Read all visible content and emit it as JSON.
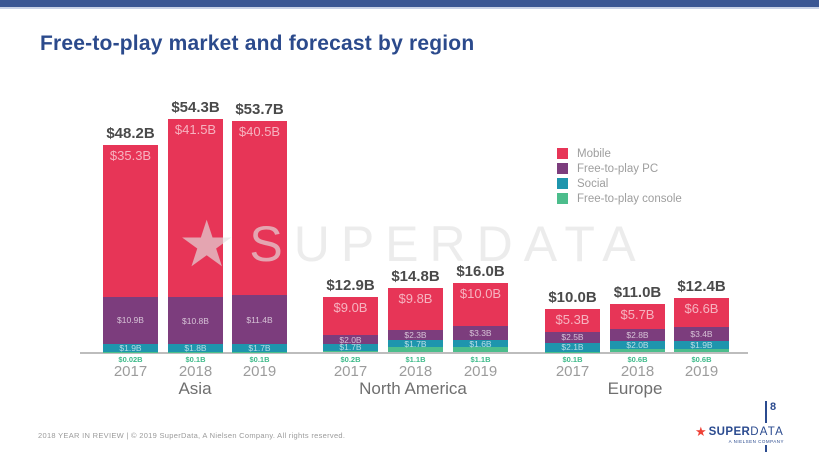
{
  "slide": {
    "title": "Free-to-play market and forecast by region",
    "footer": "2018 YEAR IN REVIEW  |  © 2019 SuperData, A Nielsen Company. All rights reserved.",
    "page_number": "8",
    "watermark": "SUPERDATA",
    "logo": {
      "super": "SUPER",
      "data": "DATA",
      "subtitle": "A NIELSEN COMPANY"
    }
  },
  "colors": {
    "mobile": "#e73557",
    "pc": "#7c3d7d",
    "social": "#1e95ad",
    "console": "#4cbd8c",
    "console_text": "#3cba89",
    "title": "#2b4a8c",
    "topbar": "#3a5693",
    "logo_blue": "#2b4b8f",
    "logo_star": "#ee4136"
  },
  "chart_data": {
    "type": "bar",
    "stacked": true,
    "unit": "USD billions",
    "title": "Free-to-play market and forecast by region",
    "stack_order_bottom_to_top": [
      "console",
      "social",
      "pc",
      "mobile"
    ],
    "legend_position": "right",
    "grid": false,
    "legend": [
      {
        "key": "mobile",
        "label": "Mobile"
      },
      {
        "key": "pc",
        "label": "Free-to-play PC"
      },
      {
        "key": "social",
        "label": "Social"
      },
      {
        "key": "console",
        "label": "Free-to-play console"
      }
    ],
    "regions": [
      {
        "name": "Asia",
        "years": [
          {
            "year": "2017",
            "total": 48.2,
            "values": {
              "mobile": 35.3,
              "pc": 10.9,
              "social": 1.9,
              "console": 0.02
            },
            "labels": {
              "total": "$48.2B",
              "mobile": "$35.3B",
              "pc": "$10.9B",
              "social": "$1.9B",
              "console": "$0.02B"
            }
          },
          {
            "year": "2018",
            "total": 54.3,
            "values": {
              "mobile": 41.5,
              "pc": 10.8,
              "social": 1.8,
              "console": 0.1
            },
            "labels": {
              "total": "$54.3B",
              "mobile": "$41.5B",
              "pc": "$10.8B",
              "social": "$1.8B",
              "console": "$0.1B"
            }
          },
          {
            "year": "2019",
            "total": 53.7,
            "values": {
              "mobile": 40.5,
              "pc": 11.4,
              "social": 1.7,
              "console": 0.1
            },
            "labels": {
              "total": "$53.7B",
              "mobile": "$40.5B",
              "pc": "$11.4B",
              "social": "$1.7B",
              "console": "$0.1B"
            }
          }
        ]
      },
      {
        "name": "North America",
        "years": [
          {
            "year": "2017",
            "total": 12.9,
            "values": {
              "mobile": 9.0,
              "pc": 2.0,
              "social": 1.7,
              "console": 0.2
            },
            "labels": {
              "total": "$12.9B",
              "mobile": "$9.0B",
              "pc": "$2.0B",
              "social": "$1.7B",
              "console": "$0.2B"
            }
          },
          {
            "year": "2018",
            "total": 14.8,
            "values": {
              "mobile": 9.8,
              "pc": 2.3,
              "social": 1.7,
              "console": 1.1
            },
            "labels": {
              "total": "$14.8B",
              "mobile": "$9.8B",
              "pc": "$2.3B",
              "social": "$1.7B",
              "console": "$1.1B"
            }
          },
          {
            "year": "2019",
            "total": 16.0,
            "values": {
              "mobile": 10.0,
              "pc": 3.3,
              "social": 1.6,
              "console": 1.1
            },
            "labels": {
              "total": "$16.0B",
              "mobile": "$10.0B",
              "pc": "$3.3B",
              "social": "$1.6B",
              "console": "$1.1B"
            }
          }
        ]
      },
      {
        "name": "Europe",
        "years": [
          {
            "year": "2017",
            "total": 10.0,
            "values": {
              "mobile": 5.3,
              "pc": 2.5,
              "social": 2.1,
              "console": 0.1
            },
            "labels": {
              "total": "$10.0B",
              "mobile": "$5.3B",
              "pc": "$2.5B",
              "social": "$2.1B",
              "console": "$0.1B"
            }
          },
          {
            "year": "2018",
            "total": 11.0,
            "values": {
              "mobile": 5.7,
              "pc": 2.8,
              "social": 2.0,
              "console": 0.6
            },
            "labels": {
              "total": "$11.0B",
              "mobile": "$5.7B",
              "pc": "$2.8B",
              "social": "$2.0B",
              "console": "$0.6B"
            }
          },
          {
            "year": "2019",
            "total": 12.4,
            "values": {
              "mobile": 6.6,
              "pc": 3.4,
              "social": 1.9,
              "console": 0.6
            },
            "labels": {
              "total": "$12.4B",
              "mobile": "$6.6B",
              "pc": "$3.4B",
              "social": "$1.9B",
              "console": "$0.6B"
            }
          }
        ]
      }
    ]
  }
}
